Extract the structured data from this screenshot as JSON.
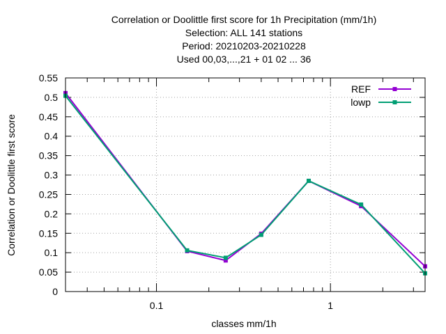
{
  "chart_data": {
    "type": "line",
    "title_lines": [
      "Correlation or Doolittle first score  for 1h Precipitation (mm/1h)",
      "Selection: ALL     141 stations",
      "Period: 20210203-20210228",
      "Used  00,03,...,21  + 01 02 ... 36"
    ],
    "xlabel": "classes mm/1h",
    "ylabel": "Correlation or Doolittle first score",
    "x_scale": "log",
    "xlim": [
      0.03,
      3.5
    ],
    "ylim": [
      0,
      0.55
    ],
    "x_tick_labels": [
      "0.1",
      "1"
    ],
    "y_ticks": [
      "0",
      "0.05",
      "0.1",
      "0.15",
      "0.2",
      "0.25",
      "0.3",
      "0.35",
      "0.4",
      "0.45",
      "0.5",
      "0.55"
    ],
    "grid": true,
    "legend_position": "top-right",
    "x": [
      0.03,
      0.15,
      0.25,
      0.4,
      0.75,
      1.5,
      3.5
    ],
    "series": [
      {
        "name": "REF",
        "color": "#9400d3",
        "values": [
          0.511,
          0.104,
          0.08,
          0.149,
          0.285,
          0.22,
          0.065
        ]
      },
      {
        "name": "lowp",
        "color": "#009e73",
        "values": [
          0.504,
          0.106,
          0.087,
          0.146,
          0.285,
          0.224,
          0.047
        ]
      }
    ]
  }
}
